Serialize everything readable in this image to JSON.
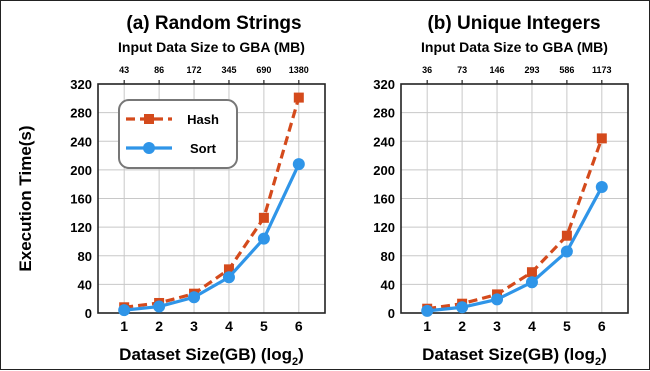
{
  "chart_data": [
    {
      "type": "line",
      "title": "(a) Random Strings",
      "x": [
        1,
        2,
        3,
        4,
        5,
        6
      ],
      "xlabel": "Dataset Size(GB) (log",
      "xlabel_sub": "2",
      "xlabel_end": ")",
      "ylabel": "Execution Time(s)",
      "ylim": [
        0,
        320
      ],
      "yticks": [
        0,
        40,
        80,
        120,
        160,
        200,
        240,
        280,
        320
      ],
      "top_axis_label": "Input Data Size to GBA (MB)",
      "top_ticks": [
        "43",
        "86",
        "172",
        "345",
        "690",
        "1380"
      ],
      "grid": true,
      "legend": "top-left",
      "series": [
        {
          "name": "Hash",
          "values": [
            8,
            14,
            27,
            61,
            133,
            301
          ],
          "color": "#d44a1c",
          "marker": "square",
          "dash": true
        },
        {
          "name": "Sort",
          "values": [
            4,
            9,
            22,
            50,
            104,
            208
          ],
          "color": "#2f95e8",
          "marker": "circle",
          "dash": false
        }
      ]
    },
    {
      "type": "line",
      "title": "(b) Unique Integers",
      "x": [
        1,
        2,
        3,
        4,
        5,
        6
      ],
      "xlabel": "Dataset Size(GB) (log",
      "xlabel_sub": "2",
      "xlabel_end": ")",
      "ylabel": "",
      "ylim": [
        0,
        320
      ],
      "yticks": [
        0,
        40,
        80,
        120,
        160,
        200,
        240,
        280,
        320
      ],
      "top_axis_label": "Input Data Size to GBA (MB)",
      "top_ticks": [
        "36",
        "73",
        "146",
        "293",
        "586",
        "1173"
      ],
      "grid": true,
      "legend": "",
      "series": [
        {
          "name": "Hash",
          "values": [
            6,
            13,
            26,
            57,
            108,
            244
          ],
          "color": "#d44a1c",
          "marker": "square",
          "dash": true
        },
        {
          "name": "Sort",
          "values": [
            3,
            8,
            19,
            43,
            86,
            176
          ],
          "color": "#2f95e8",
          "marker": "circle",
          "dash": false
        }
      ]
    }
  ]
}
